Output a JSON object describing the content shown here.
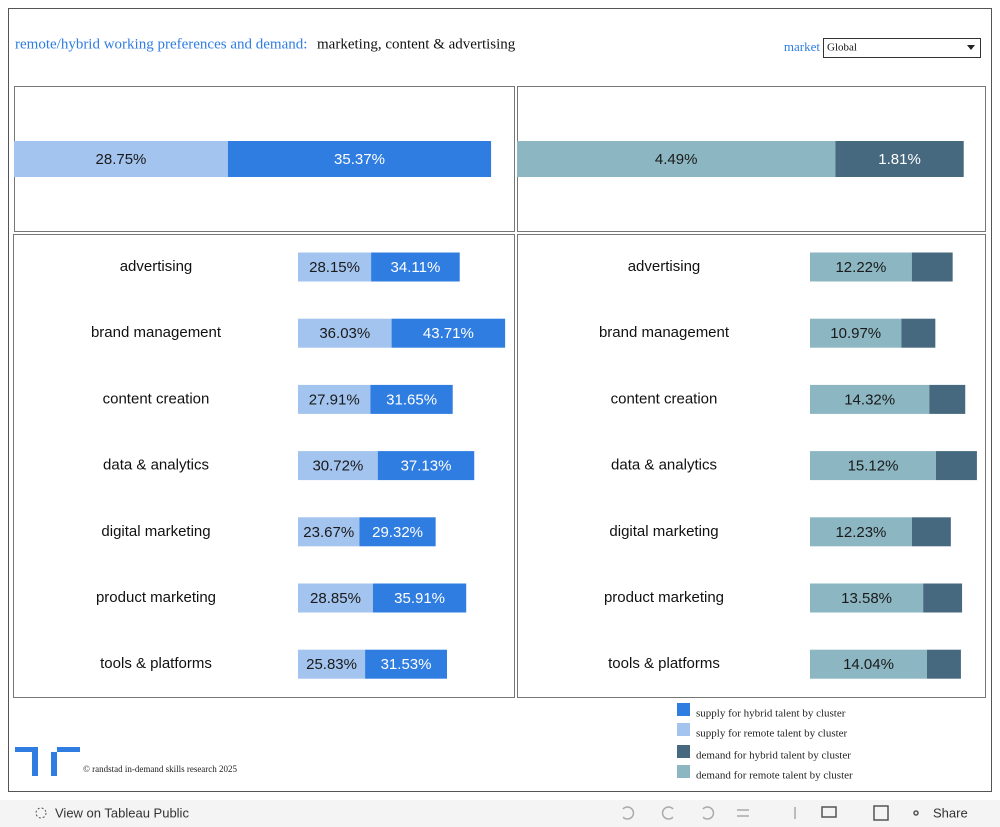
{
  "header": {
    "title_lead": "remote/hybrid working preferences and demand:",
    "title_topic": "marketing, content & advertising",
    "filter_label": "market",
    "filter_value": "Global"
  },
  "chart_data": [
    {
      "type": "bar",
      "orientation": "horizontal",
      "stacked": true,
      "categories": [
        null
      ],
      "xlim": [
        0,
        67.2
      ],
      "series": [
        {
          "name": "supply for remote talent by cluster",
          "color": "#a3c4ef",
          "label_color": "#1a1a1a",
          "values": [
            28.75
          ],
          "value_labels": [
            "28.75%"
          ]
        },
        {
          "name": "supply for hybrid talent by cluster",
          "color": "#2f7de1",
          "label_color": "#ffffff",
          "values": [
            35.37
          ],
          "value_labels": [
            "35.37%"
          ]
        }
      ]
    },
    {
      "type": "bar",
      "orientation": "horizontal",
      "stacked": true,
      "categories": [
        null
      ],
      "xlim": [
        0,
        6.6
      ],
      "series": [
        {
          "name": "demand for remote talent by cluster",
          "color": "#8bb6c2",
          "label_color": "#1a1a1a",
          "values": [
            4.49
          ],
          "value_labels": [
            "4.49%"
          ]
        },
        {
          "name": "demand for hybrid talent by cluster",
          "color": "#46697f",
          "label_color": "#ffffff",
          "values": [
            1.81
          ],
          "value_labels": [
            "1.81%"
          ]
        }
      ]
    },
    {
      "type": "bar",
      "orientation": "horizontal",
      "stacked": true,
      "categories": [
        "advertising",
        "brand management",
        "content creation",
        "data & analytics",
        "digital marketing",
        "product marketing",
        "tools & platforms"
      ],
      "xlim": [
        0,
        82
      ],
      "series": [
        {
          "color": "#a3c4ef",
          "label_color": "#1a1a1a",
          "values": [
            28.15,
            36.03,
            27.91,
            30.72,
            23.67,
            28.85,
            25.83
          ],
          "value_labels": [
            "28.15%",
            "36.03%",
            "27.91%",
            "30.72%",
            "23.67%",
            "28.85%",
            "25.83%"
          ]
        },
        {
          "color": "#2f7de1",
          "label_color": "#ffffff",
          "values": [
            34.11,
            43.71,
            31.65,
            37.13,
            29.32,
            35.91,
            31.53
          ],
          "value_labels": [
            "34.11%",
            "43.71%",
            "31.65%",
            "37.13%",
            "29.32%",
            "35.91%",
            "31.53%"
          ]
        }
      ]
    },
    {
      "type": "bar",
      "orientation": "horizontal",
      "stacked": true,
      "categories": [
        "advertising",
        "brand management",
        "content creation",
        "data & analytics",
        "digital marketing",
        "product marketing",
        "tools & platforms"
      ],
      "xlim": [
        0,
        21
      ],
      "series": [
        {
          "color": "#8bb6c2",
          "label_color": "#1a1a1a",
          "values": [
            12.22,
            10.97,
            14.32,
            15.12,
            12.23,
            13.58,
            14.04
          ],
          "value_labels": [
            "12.22%",
            "10.97%",
            "14.32%",
            "15.12%",
            "12.23%",
            "13.58%",
            "14.04%"
          ]
        },
        {
          "color": "#46697f",
          "label_color": "#ffffff",
          "values": [
            4.9,
            4.07,
            4.31,
            4.91,
            4.67,
            4.67,
            4.07
          ]
        }
      ]
    }
  ],
  "footer": {
    "credit": "© randstad in-demand skills research 2025"
  },
  "toolbar": {
    "view_label": "View on Tableau Public",
    "share_label": "Share"
  }
}
